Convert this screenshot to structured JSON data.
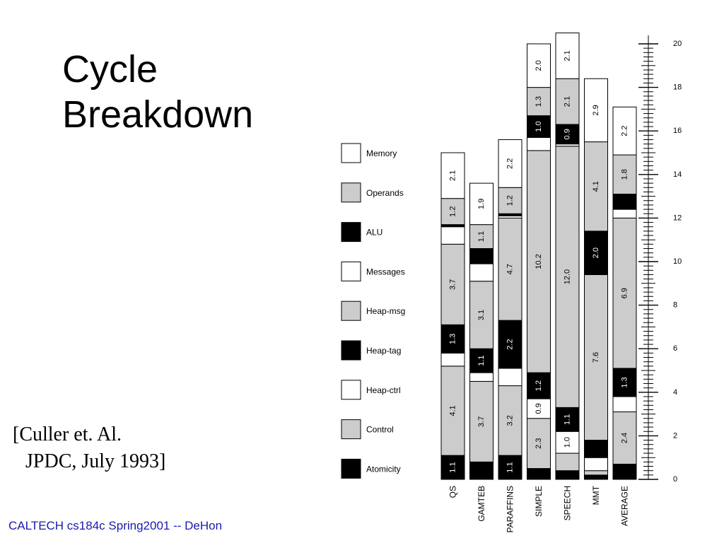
{
  "slide": {
    "title_line1": "Cycle",
    "title_line2": "Breakdown",
    "citation_line1": "[Culler et. Al.",
    "citation_line2": "JPDC, July 1993]",
    "footer": "CALTECH cs184c Spring2001 -- DeHon"
  },
  "chart_data": {
    "type": "bar",
    "stacked": true,
    "orientation": "vertical",
    "categories": [
      "QS",
      "GAMTEB",
      "PARAFFINS",
      "SIMPLE",
      "SPEECH",
      "MMT",
      "AVERAGE"
    ],
    "segment_order_bottom_to_top": [
      "Atomicity",
      "Control",
      "Heap-ctrl",
      "Heap-tag",
      "Heap-msg",
      "Messages",
      "ALU",
      "Operands",
      "Memory"
    ],
    "legend": [
      {
        "name": "Memory",
        "color": "#ffffff"
      },
      {
        "name": "Operands",
        "color": "#cccccc"
      },
      {
        "name": "ALU",
        "color": "#000000"
      },
      {
        "name": "Messages",
        "color": "#ffffff"
      },
      {
        "name": "Heap-msg",
        "color": "#cccccc"
      },
      {
        "name": "Heap-tag",
        "color": "#000000"
      },
      {
        "name": "Heap-ctrl",
        "color": "#ffffff"
      },
      {
        "name": "Control",
        "color": "#cccccc"
      },
      {
        "name": "Atomicity",
        "color": "#000000"
      }
    ],
    "series": [
      {
        "name": "Atomicity",
        "values": [
          1.1,
          0.8,
          1.1,
          0.5,
          0.4,
          0.2,
          0.7
        ],
        "labels": [
          "1.1",
          "",
          "1.1",
          "",
          "",
          "",
          ""
        ]
      },
      {
        "name": "Control",
        "values": [
          4.1,
          3.7,
          3.2,
          2.3,
          0.8,
          0.2,
          2.4
        ],
        "labels": [
          "4.1",
          "3.7",
          "3.2",
          "2.3",
          "",
          "",
          "2.4"
        ]
      },
      {
        "name": "Heap-ctrl",
        "values": [
          0.6,
          0.4,
          0.8,
          0.9,
          1.0,
          0.6,
          0.7
        ],
        "labels": [
          "",
          "",
          "",
          "0.9",
          "1.0",
          "",
          ""
        ]
      },
      {
        "name": "Heap-tag",
        "values": [
          1.3,
          1.1,
          2.2,
          1.2,
          1.1,
          0.8,
          1.3
        ],
        "labels": [
          "1.3",
          "1.1",
          "2.2",
          "1.2",
          "1.1",
          "",
          "1.3"
        ]
      },
      {
        "name": "Heap-msg",
        "values": [
          3.7,
          3.1,
          4.7,
          10.2,
          12.0,
          7.6,
          6.9
        ],
        "labels": [
          "3.7",
          "3.1",
          "4.7",
          "10.2",
          "12.0",
          "7.6",
          "6.9"
        ]
      },
      {
        "name": "Messages",
        "values": [
          0.8,
          0.8,
          0.1,
          0.6,
          0.1,
          0.0,
          0.4
        ],
        "labels": [
          "",
          "",
          "",
          "",
          "",
          "",
          ""
        ]
      },
      {
        "name": "ALU",
        "values": [
          0.1,
          0.7,
          0.1,
          1.0,
          0.9,
          2.0,
          0.7
        ],
        "labels": [
          "",
          "",
          "",
          "1.0",
          "0.9",
          "2.0",
          ""
        ]
      },
      {
        "name": "Operands",
        "values": [
          1.2,
          1.1,
          1.2,
          1.3,
          2.1,
          4.1,
          1.8
        ],
        "labels": [
          "1.2",
          "1.1",
          "1.2",
          "1.3",
          "2.1",
          "4.1",
          "1.8"
        ]
      },
      {
        "name": "Memory",
        "values": [
          2.1,
          1.9,
          2.2,
          2.0,
          2.1,
          2.9,
          2.2
        ],
        "labels": [
          "2.1",
          "1.9",
          "2.2",
          "2.0",
          "2.1",
          "2.9",
          "2.2"
        ]
      }
    ],
    "xlabel": "",
    "ylabel": "",
    "ylim": [
      0,
      20
    ],
    "yticks": [
      0,
      2,
      4,
      6,
      8,
      10,
      12,
      14,
      16,
      18,
      20
    ],
    "yaxis_side": "right",
    "grid": false,
    "legend_position": "left"
  }
}
